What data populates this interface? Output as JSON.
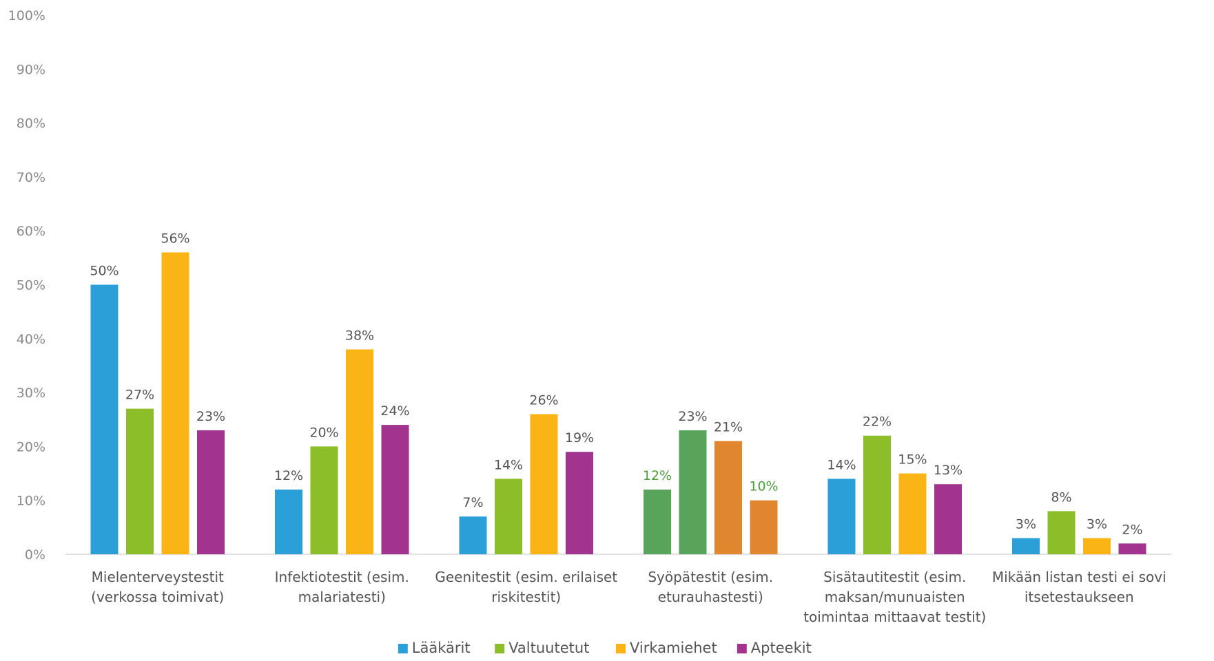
{
  "chart_data": {
    "type": "bar",
    "categories": [
      [
        "Mielenterveystestit",
        "(verkossa toimivat)"
      ],
      [
        "Infektiotestit (esim.",
        "malariatesti)"
      ],
      [
        "Geenitestit (esim. erilaiset",
        "riskitestit)"
      ],
      [
        "Syöpätestit (esim.",
        "eturauhastesti)"
      ],
      [
        "Sisätautitestit (esim.",
        "maksan/munuaisten",
        "toimintaa mittaavat testit)"
      ],
      [
        "Mikään listan testi ei sovi",
        "itsetestaukseen"
      ]
    ],
    "series": [
      {
        "name": "Lääkärit",
        "color": "#2a9fd8",
        "values": [
          50,
          12,
          7,
          12,
          14,
          3
        ]
      },
      {
        "name": "Valtuutetut",
        "color": "#8cbe2a",
        "values": [
          27,
          20,
          14,
          23,
          22,
          8
        ]
      },
      {
        "name": "Virkamiehet",
        "color": "#fbb416",
        "values": [
          56,
          38,
          26,
          21,
          15,
          3
        ]
      },
      {
        "name": "Apteekit",
        "color": "#a2338e",
        "values": [
          23,
          24,
          19,
          10,
          13,
          2
        ]
      }
    ],
    "overrides": [
      {
        "category": 3,
        "colors": [
          "#58a45a",
          "#58a45a",
          "#e0862e",
          "#e0862e"
        ],
        "label_colors": [
          "#4e9a3e",
          null,
          null,
          "#4e9a3e"
        ]
      }
    ],
    "ylim": [
      0,
      100
    ],
    "yticks": [
      "0%",
      "10%",
      "20%",
      "30%",
      "40%",
      "50%",
      "60%",
      "70%",
      "80%",
      "90%",
      "100%"
    ],
    "value_suffix": "%",
    "legend_position": "bottom-center",
    "grid": false
  }
}
